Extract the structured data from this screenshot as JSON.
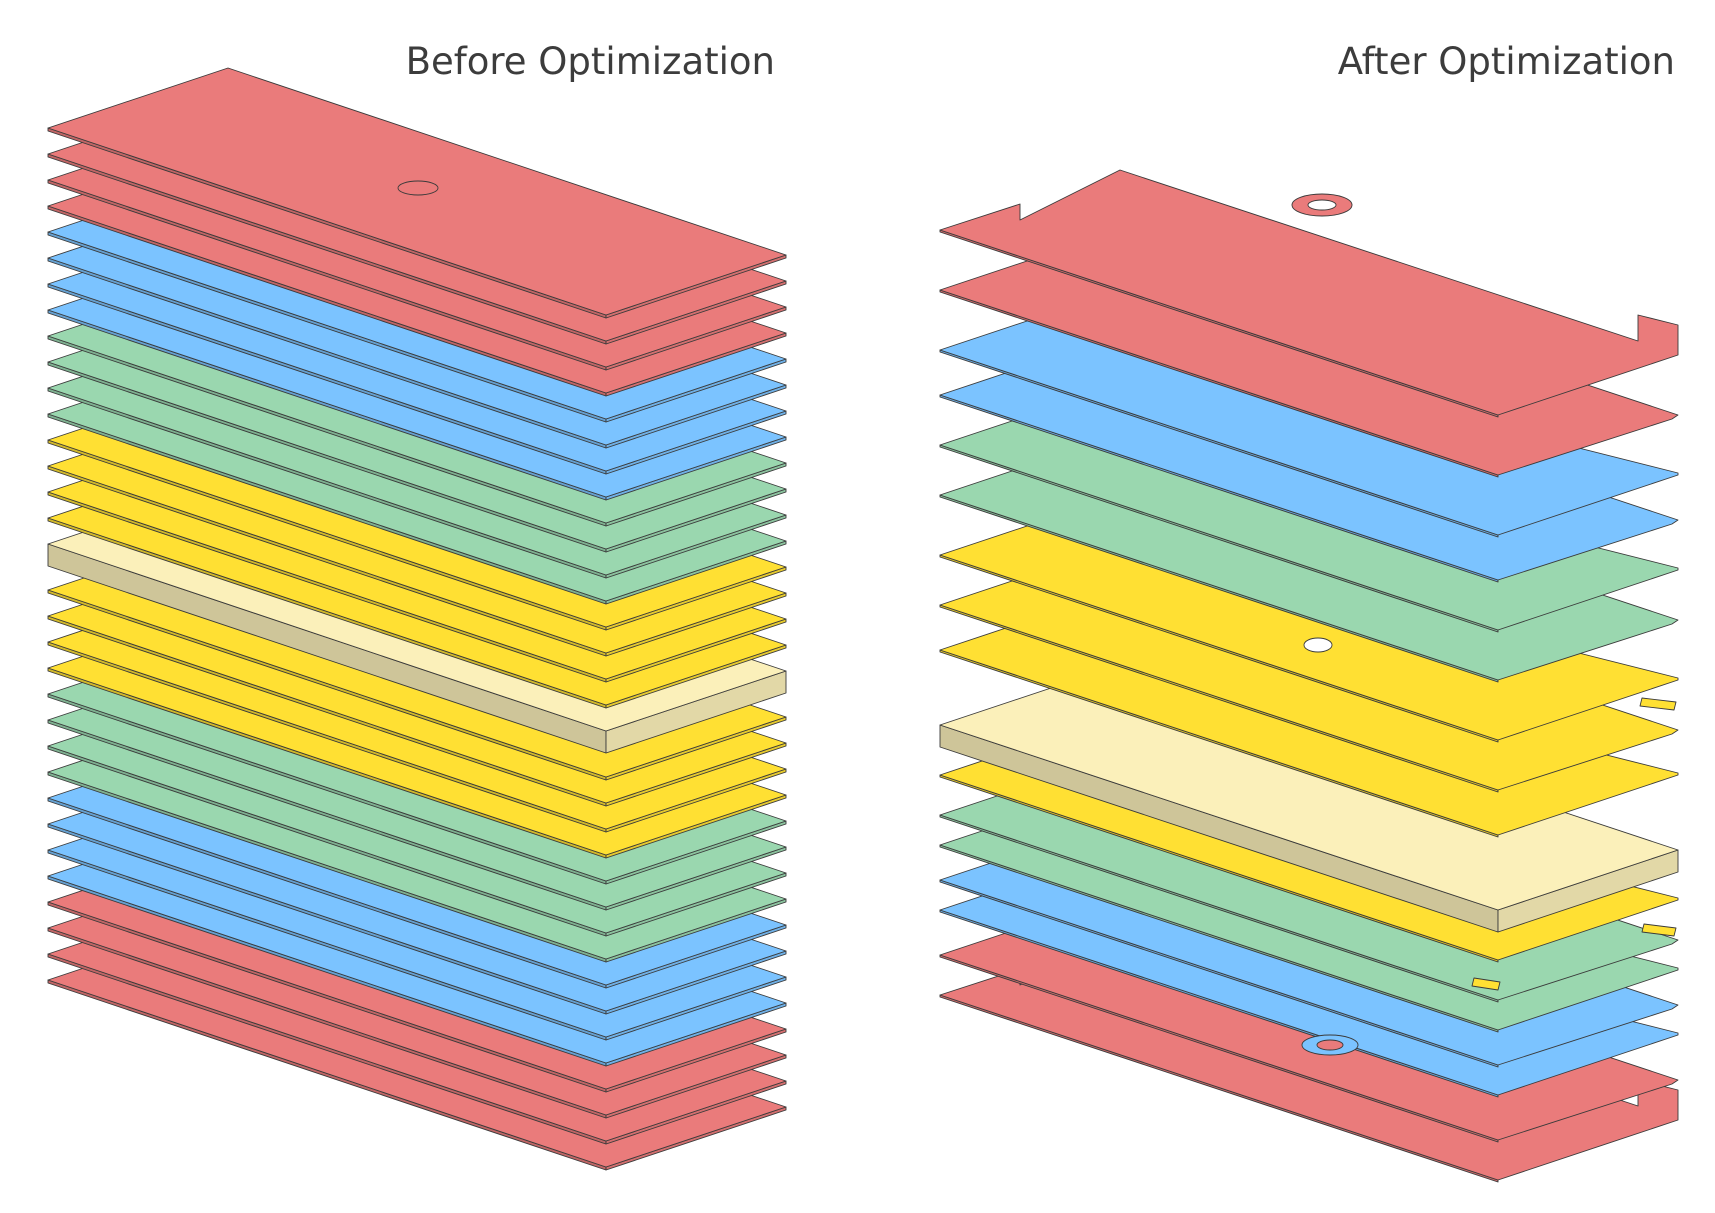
{
  "titles": {
    "before": "Before Optimization",
    "after": "After Optimization"
  },
  "colors": {
    "red": "#EA7B7B",
    "blue": "#7BC3FF",
    "green": "#9AD7AF",
    "yellow": "#FFE033",
    "cream": "#FBF0BA",
    "edge": "#3a3a3a"
  },
  "before_stack": [
    "red",
    "red",
    "red",
    "red",
    "blue",
    "blue",
    "blue",
    "blue",
    "green",
    "green",
    "green",
    "green",
    "yellow",
    "yellow",
    "yellow",
    "yellow",
    "cream",
    "yellow",
    "yellow",
    "yellow",
    "yellow",
    "green",
    "green",
    "green",
    "green",
    "blue",
    "blue",
    "blue",
    "blue",
    "red",
    "red",
    "red",
    "red"
  ],
  "after_stack": [
    "red",
    "red",
    "blue",
    "blue",
    "green",
    "green",
    "yellow",
    "yellow",
    "yellow",
    "cream",
    "yellow",
    "green",
    "green",
    "blue",
    "blue",
    "red",
    "red"
  ]
}
